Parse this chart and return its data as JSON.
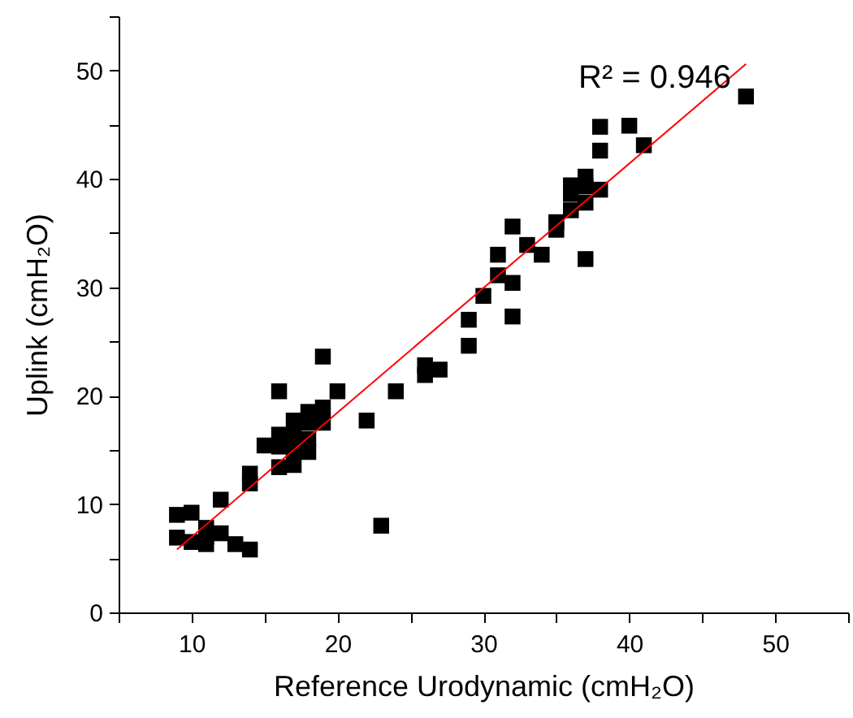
{
  "chart_data": {
    "type": "scatter",
    "xlabel": "Reference Urodynamic (cmH₂O)",
    "ylabel": "Uplink (cmH₂O)",
    "annotations": [
      "R² = 0.946"
    ],
    "marker": "square",
    "grid": false,
    "xlim": [
      5,
      55
    ],
    "ylim": [
      0,
      55
    ],
    "xticks": [
      {
        "value": 5,
        "label": null
      },
      10,
      {
        "value": 15,
        "label": null
      },
      20,
      {
        "value": 25,
        "label": null
      },
      30,
      {
        "value": 35,
        "label": null
      },
      40,
      {
        "value": 45,
        "label": null
      },
      50,
      {
        "value": 55,
        "label": null
      }
    ],
    "yticks": [
      0,
      {
        "value": 5,
        "label": null
      },
      10,
      {
        "value": 15,
        "label": null
      },
      20,
      {
        "value": 25,
        "label": null
      },
      30,
      {
        "value": 35,
        "label": null
      },
      40,
      {
        "value": 45,
        "label": null
      },
      50,
      {
        "value": 55,
        "label": null
      }
    ],
    "series": [
      {
        "color": "#000000",
        "x": [
          9,
          9,
          10,
          10,
          11,
          11,
          11,
          12,
          12,
          13,
          14,
          14,
          14,
          15,
          16,
          16,
          16,
          16,
          17,
          17,
          17,
          17,
          18,
          18,
          18,
          18,
          19,
          19,
          19,
          20,
          22,
          23,
          24,
          26,
          26,
          27,
          29,
          29,
          30,
          31,
          31,
          32,
          32,
          32,
          33,
          34,
          35,
          35,
          36,
          36,
          36,
          37,
          37,
          37,
          37,
          38,
          38,
          38,
          40,
          41,
          48
        ],
        "values": [
          9.0,
          6.9,
          9.2,
          6.5,
          7.8,
          6.3,
          7.0,
          10.4,
          7.3,
          6.3,
          5.8,
          12.8,
          11.9,
          15.4,
          20.4,
          16.4,
          15.3,
          13.4,
          17.7,
          16.3,
          13.6,
          15.0,
          18.5,
          17.5,
          14.8,
          16.0,
          23.6,
          18.9,
          17.5,
          20.4,
          17.7,
          8.0,
          20.4,
          22.8,
          21.9,
          22.4,
          27.0,
          24.6,
          29.2,
          33.0,
          31.1,
          35.6,
          30.4,
          27.3,
          33.9,
          33.0,
          36.0,
          35.3,
          37.1,
          39.4,
          38.6,
          40.2,
          39.3,
          37.8,
          32.6,
          44.8,
          42.6,
          39.0,
          44.9,
          43.1,
          47.6
        ]
      },
      {
        "type": "line",
        "marker": "none",
        "color": "#ff0000",
        "x": [
          9,
          48
        ],
        "values": [
          5.8,
          50.6
        ]
      }
    ]
  }
}
